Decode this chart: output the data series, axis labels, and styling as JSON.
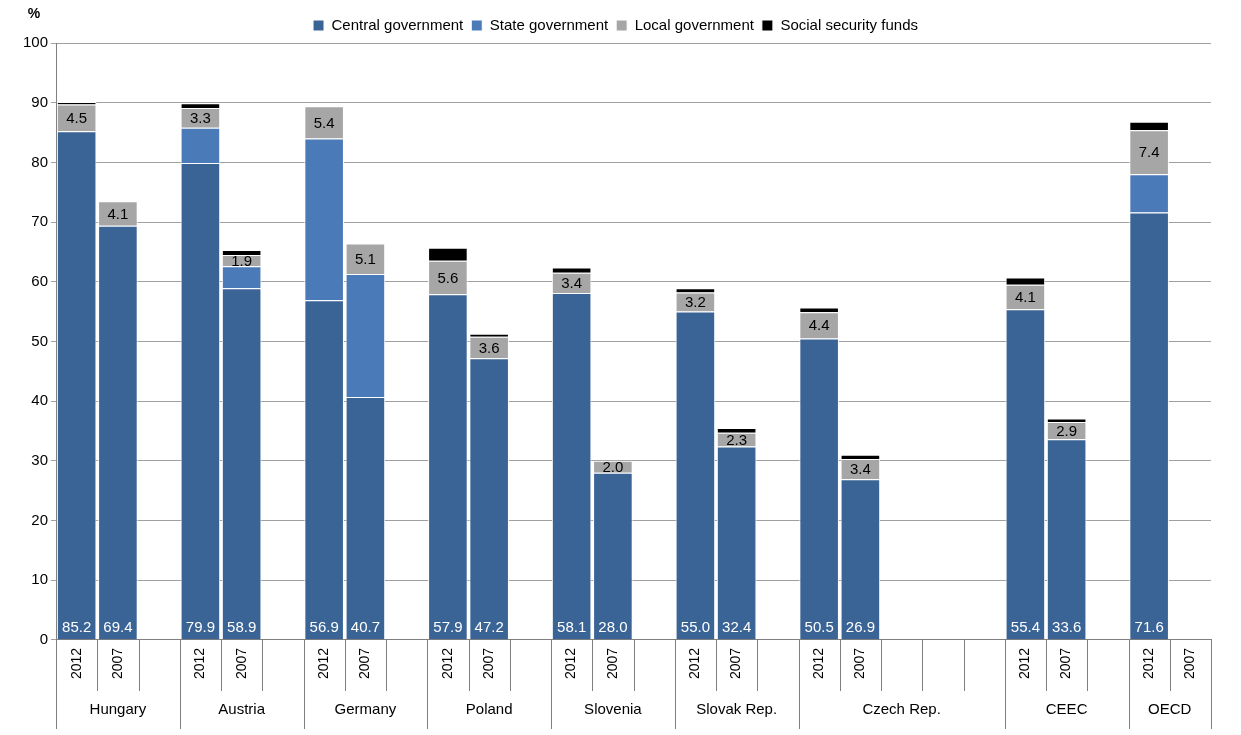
{
  "chart_data": {
    "type": "bar",
    "stacked": true,
    "ylabel": "%",
    "legend": "top",
    "grid": "y",
    "categories": [
      "2012",
      "2007",
      null,
      "2012",
      "2007",
      null,
      "2012",
      "2007",
      null,
      "2012",
      "2007",
      null,
      "2012",
      "2007",
      null,
      "2012",
      "2007",
      null,
      "2012",
      "2007",
      null,
      null,
      null,
      "2012",
      "2007",
      null,
      "2012",
      "2007"
    ],
    "annotations": [
      "Hungary",
      "Austria",
      "Germany",
      "Poland",
      "Slovenia",
      "Slovak Rep.",
      "Czech Rep.",
      "CEEC",
      "OECD"
    ],
    "ylim": [
      0,
      100
    ],
    "yticks": [
      0,
      10,
      20,
      30,
      40,
      50,
      60,
      70,
      80,
      90,
      100
    ],
    "series": [
      {
        "name": "Central government",
        "color": "#3a6496",
        "values": [
          85.2,
          69.4,
          null,
          79.9,
          58.9,
          null,
          56.9,
          40.7,
          null,
          57.9,
          47.2,
          null,
          58.1,
          28.0,
          null,
          55.0,
          32.4,
          null,
          50.5,
          26.9,
          null,
          null,
          null,
          55.4,
          33.6,
          null,
          71.6,
          null
        ],
        "value_labels": [
          "85.2",
          "69.4",
          null,
          "79.9",
          "58.9",
          null,
          "56.9",
          "40.7",
          null,
          "57.9",
          "47.2",
          null,
          "58.1",
          "28.0",
          null,
          "55.0",
          "32.4",
          null,
          "50.5",
          "26.9",
          null,
          null,
          null,
          "55.4",
          "33.6",
          null,
          "71.6",
          null
        ]
      },
      {
        "name": "State government",
        "color": "#4a7ab8",
        "values": [
          0,
          0,
          null,
          5.9,
          3.7,
          null,
          27.1,
          20.6,
          null,
          0,
          0,
          null,
          0,
          0,
          null,
          0,
          0,
          null,
          0,
          0,
          null,
          null,
          null,
          0,
          0,
          null,
          6.4,
          null
        ]
      },
      {
        "name": "Local government",
        "color": "#a6a6a6",
        "values": [
          4.5,
          4.1,
          null,
          3.3,
          1.9,
          null,
          5.4,
          5.1,
          null,
          5.6,
          3.6,
          null,
          3.4,
          2.0,
          null,
          3.2,
          2.3,
          null,
          4.4,
          3.4,
          null,
          null,
          null,
          4.1,
          2.9,
          null,
          7.4,
          null
        ],
        "value_labels": [
          "4.5",
          "4.1",
          null,
          "3.3",
          "1.9",
          null,
          "5.4",
          "5.1",
          null,
          "5.6",
          "3.6",
          null,
          "3.4",
          "2.0",
          null,
          "3.2",
          "2.3",
          null,
          "4.4",
          "3.4",
          null,
          null,
          null,
          "4.1",
          "2.9",
          null,
          "7.4",
          null
        ]
      },
      {
        "name": "Social security funds",
        "color": "#000000",
        "values": [
          0.4,
          0,
          null,
          0.8,
          0.8,
          null,
          0,
          0,
          null,
          2.2,
          0.5,
          null,
          0.9,
          0,
          null,
          0.7,
          0.8,
          null,
          0.8,
          0.7,
          null,
          null,
          null,
          1.2,
          0.6,
          null,
          1.4,
          null
        ]
      }
    ]
  }
}
